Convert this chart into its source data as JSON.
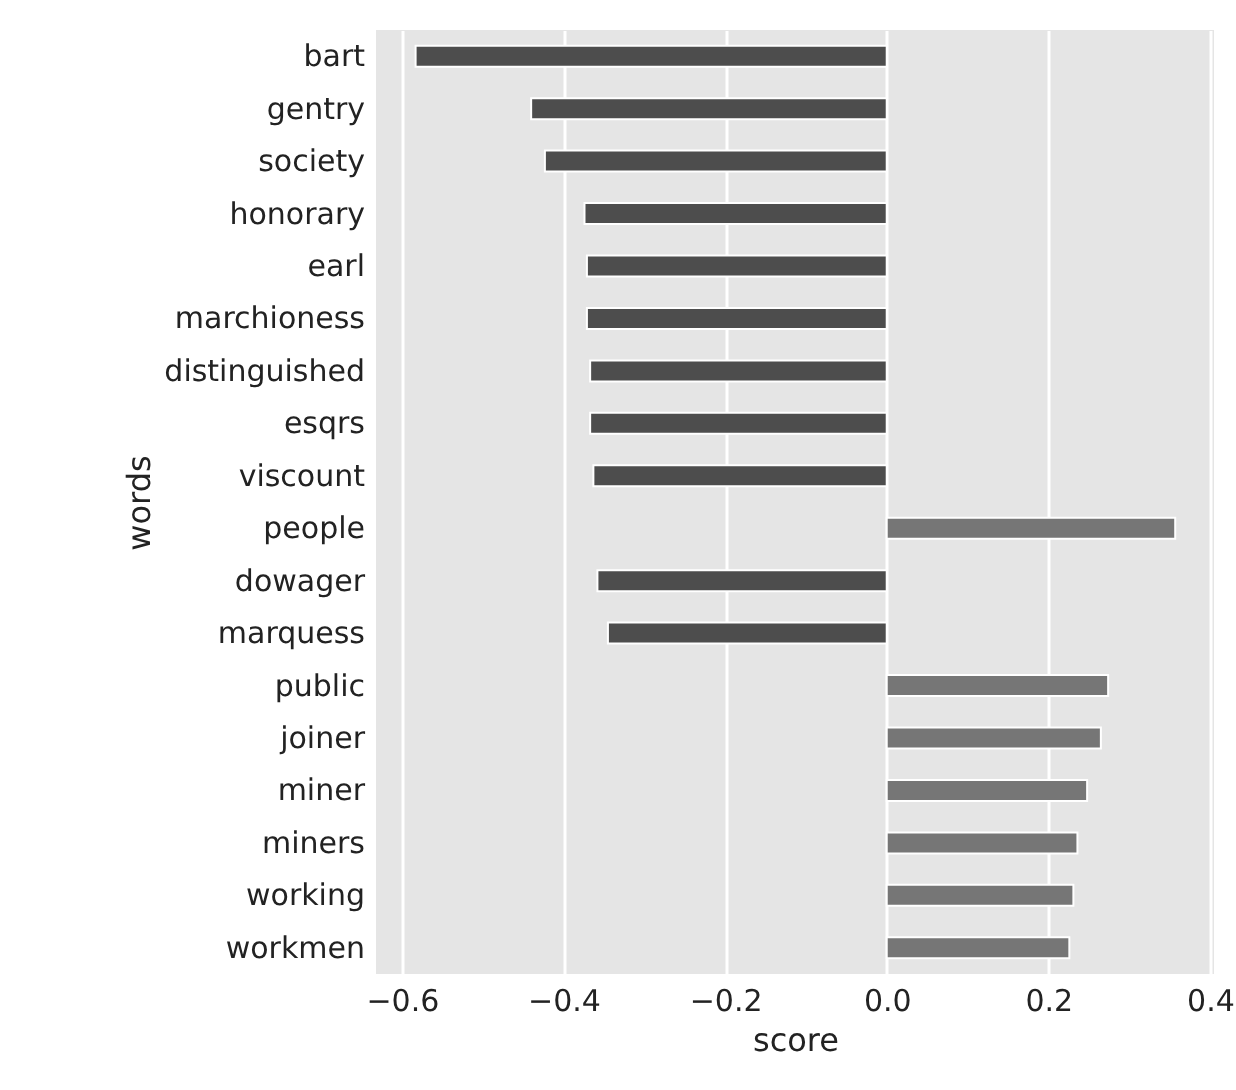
{
  "chart_data": {
    "type": "bar",
    "orientation": "horizontal",
    "xlabel": "score",
    "ylabel": "words",
    "categories": [
      "bart",
      "gentry",
      "society",
      "honorary",
      "earl",
      "marchioness",
      "distinguished",
      "esqrs",
      "viscount",
      "people",
      "dowager",
      "marquess",
      "public",
      "joiner",
      "miner",
      "miners",
      "working",
      "workmen"
    ],
    "values": [
      -0.583,
      -0.44,
      -0.423,
      -0.374,
      -0.371,
      -0.371,
      -0.367,
      -0.367,
      -0.363,
      0.357,
      -0.358,
      -0.345,
      0.274,
      0.265,
      0.248,
      0.236,
      0.231,
      0.226
    ],
    "colors": [
      "#4d4d4d",
      "#4d4d4d",
      "#4d4d4d",
      "#4d4d4d",
      "#4d4d4d",
      "#4d4d4d",
      "#4d4d4d",
      "#4d4d4d",
      "#4d4d4d",
      "#767676",
      "#4d4d4d",
      "#4d4d4d",
      "#767676",
      "#767676",
      "#767676",
      "#767676",
      "#767676",
      "#767676"
    ],
    "xlim": [
      -0.632,
      0.405
    ],
    "xticks": [
      -0.6,
      -0.4,
      -0.2,
      {
        "value": 0,
        "label": "0.0"
      },
      0.2,
      0.4
    ],
    "grid": "x"
  }
}
